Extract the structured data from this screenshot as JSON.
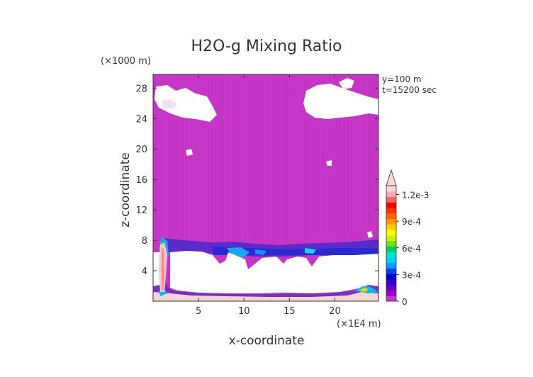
{
  "chart_data": {
    "type": "heatmap",
    "title": "H2O-g Mixing Ratio",
    "xlabel": "x-coordinate",
    "ylabel": "z-coordinate",
    "x_unit": "(×1E4 m)",
    "y_unit": "(×1000 m)",
    "annotations": [
      "y=100 m",
      "t=15200 sec"
    ],
    "xlim": [
      0,
      24.8
    ],
    "ylim": [
      0,
      29.8
    ],
    "x_ticks": [
      5,
      10,
      15,
      20
    ],
    "y_ticks": [
      4,
      8,
      12,
      16,
      20,
      24,
      28
    ],
    "colorbar": {
      "range": [
        0,
        0.0013
      ],
      "ticks": [
        {
          "value": 0,
          "label": "0"
        },
        {
          "value": 0.0003,
          "label": "3e-4"
        },
        {
          "value": 0.0006,
          "label": "6e-4"
        },
        {
          "value": 0.0009,
          "label": "9e-4"
        },
        {
          "value": 0.0012,
          "label": "1.2e-3"
        }
      ],
      "colors": [
        "#cc33cc",
        "#9900cc",
        "#6600cc",
        "#3300cc",
        "#0000cc",
        "#0044ee",
        "#0099ff",
        "#00ccff",
        "#00e6cc",
        "#00cc66",
        "#66e600",
        "#ccee00",
        "#ffff00",
        "#ffcc00",
        "#ff9900",
        "#ff6600",
        "#ff3300",
        "#ff0000",
        "#ff6666",
        "#ffaaaa",
        "#f8d8d8"
      ]
    },
    "regions": {
      "background_value": "~0 (magenta)",
      "white_low_values": "mid-level white region from ~1.5 to ~7 km",
      "moist_layer": "blue/cyan band near z ~ 6-8 km",
      "high_cloud_white_patches": "z ~ 24-29 km near x ~ 0-7 and 17-25",
      "surface_high_values": "pink layer at surface, peak near x ~ 1"
    }
  }
}
